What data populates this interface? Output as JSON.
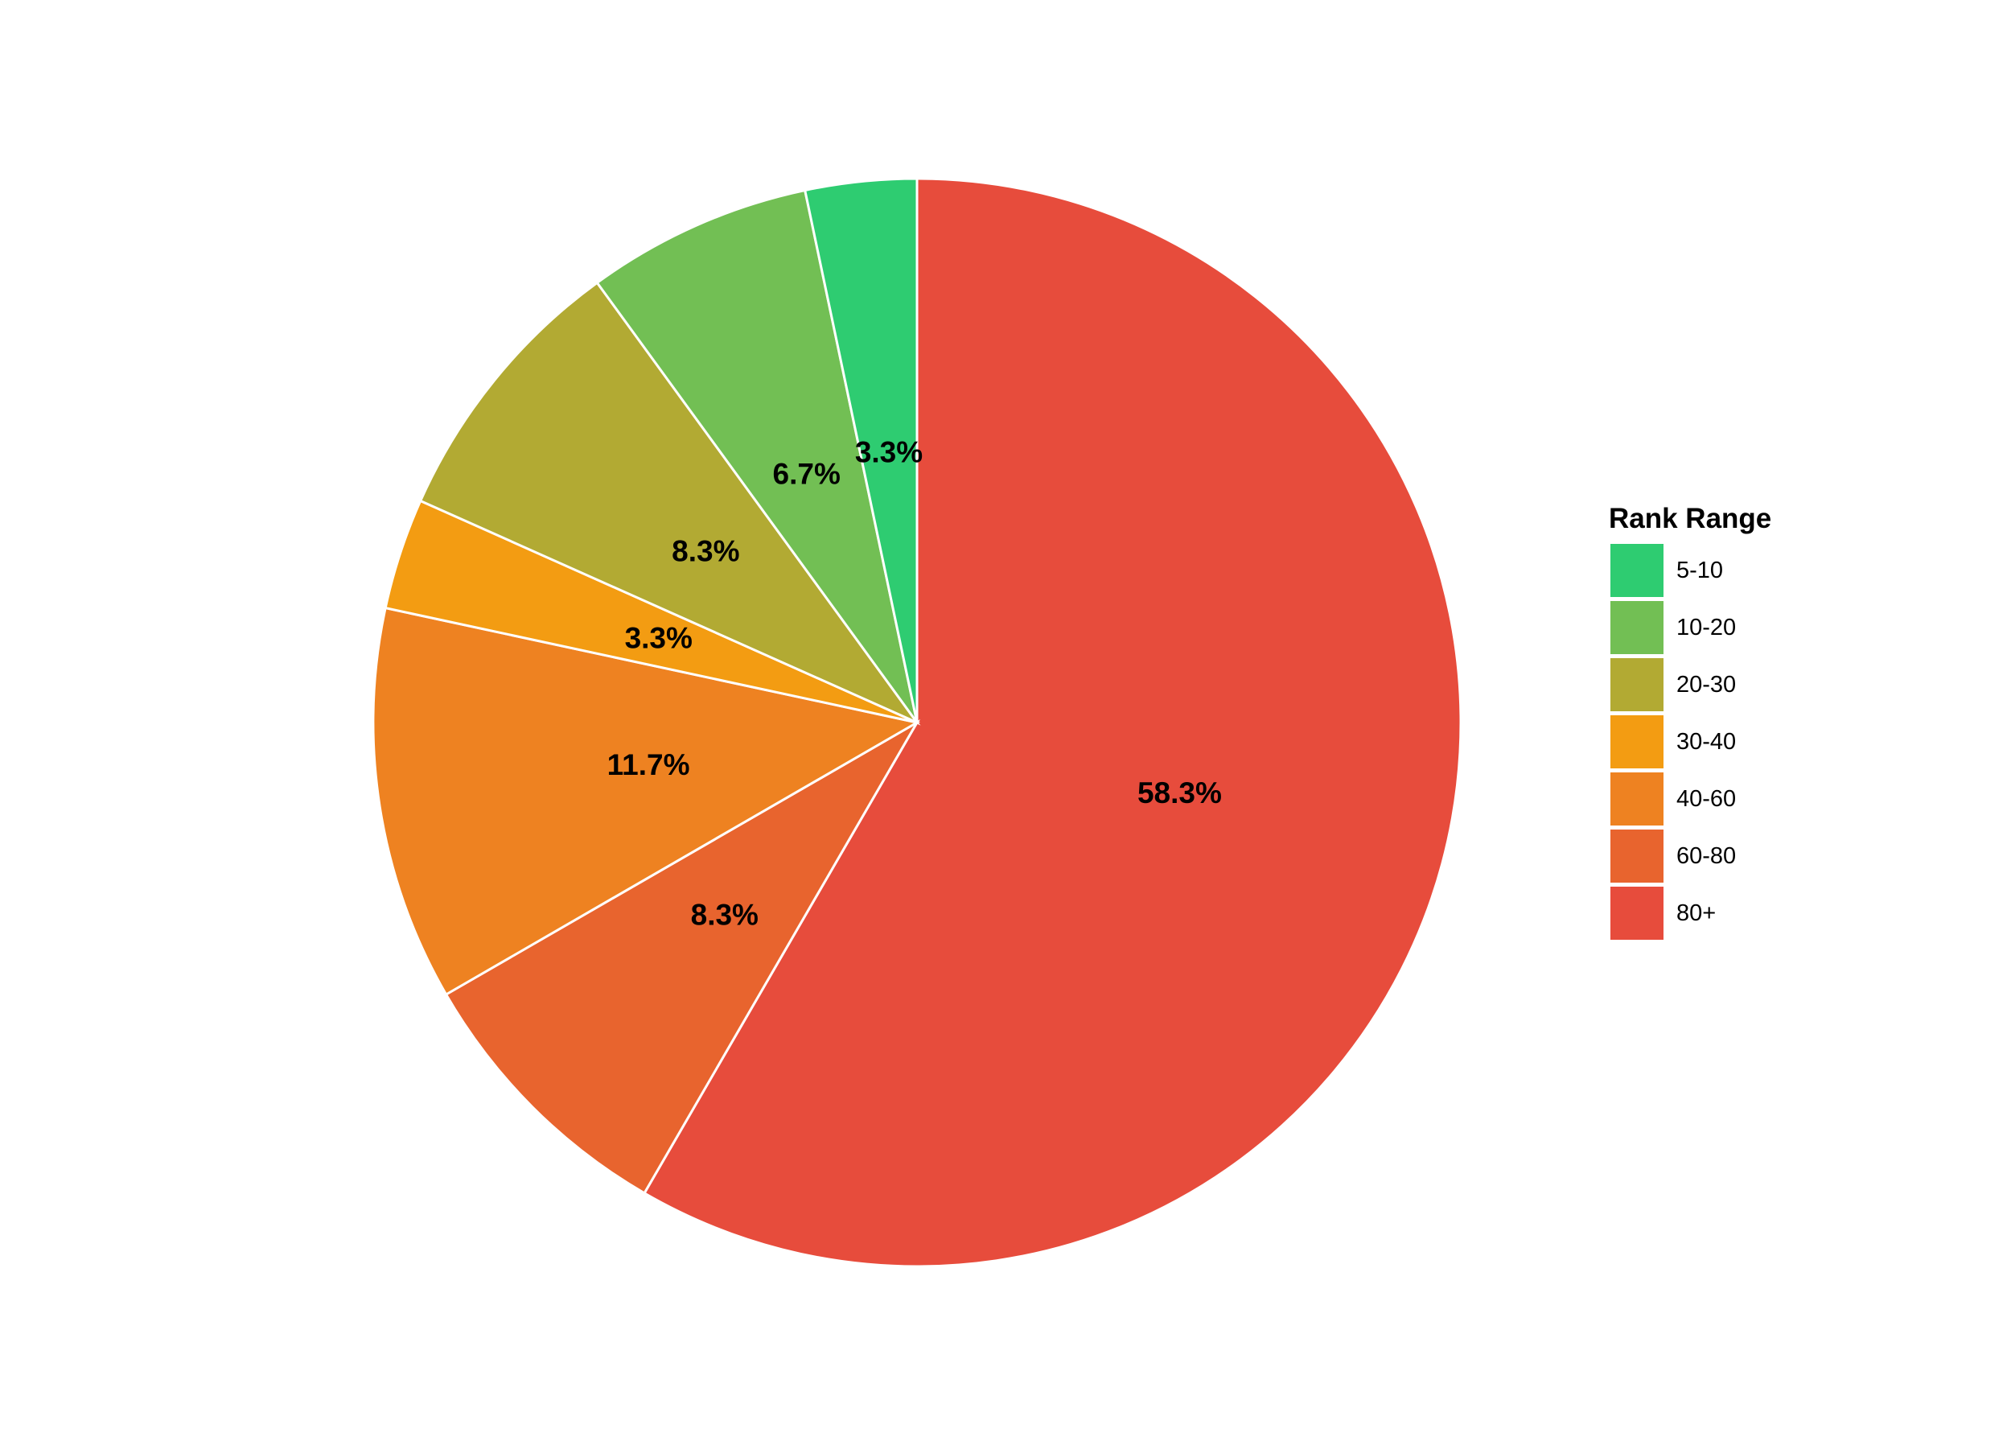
{
  "chart_data": {
    "type": "pie",
    "title": "",
    "legend": {
      "title": "Rank Range",
      "placement": "right"
    },
    "start_angle": "12 o'clock",
    "direction": "clockwise",
    "categories": [
      "5-10",
      "10-20",
      "20-30",
      "30-40",
      "40-60",
      "60-80",
      "80+"
    ],
    "values": [
      3.3,
      6.7,
      8.3,
      3.3,
      11.7,
      8.3,
      58.3
    ],
    "labels": [
      "3.3%",
      "6.7%",
      "8.3%",
      "3.3%",
      "11.7%",
      "8.3%",
      "58.3%"
    ],
    "colors": [
      "#2ecc71",
      "#72bf54",
      "#b2aa33",
      "#f39c12",
      "#ee8221",
      "#e8642e",
      "#e74c3c"
    ],
    "slice_order": [
      "80+",
      "60-80",
      "40-60",
      "30-40",
      "20-30",
      "10-20",
      "5-10"
    ]
  }
}
